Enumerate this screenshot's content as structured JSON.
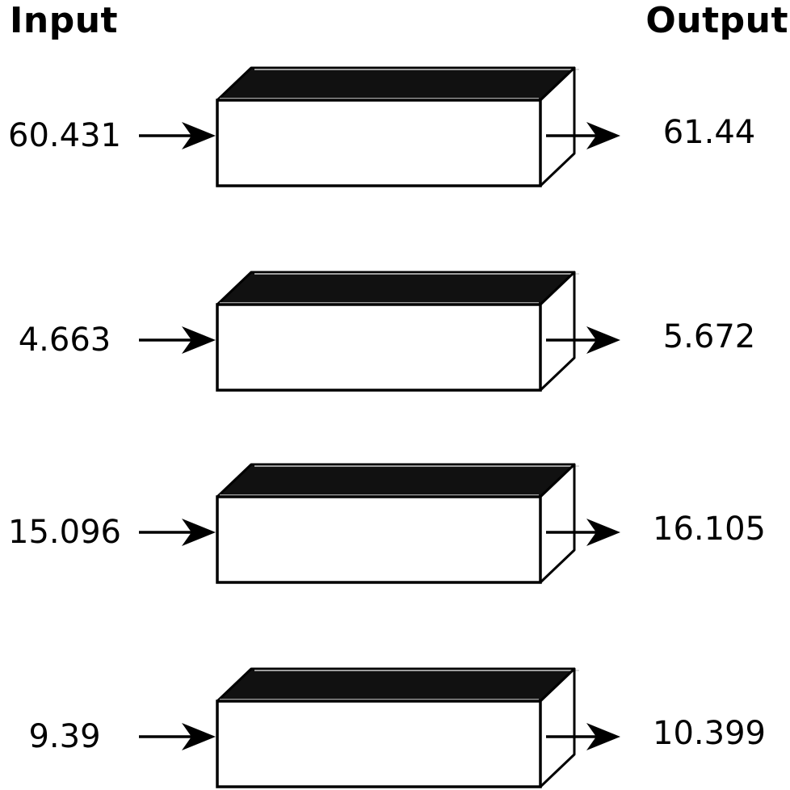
{
  "headers": {
    "input": "Input",
    "output": "Output"
  },
  "rows": [
    {
      "input": "60.431",
      "output": "61.44"
    },
    {
      "input": "4.663",
      "output": "5.672"
    },
    {
      "input": "15.096",
      "output": "16.105"
    },
    {
      "input": "9.39",
      "output": "10.399"
    }
  ],
  "colors": {
    "block_top": "#111111",
    "block_face": "#ffffff",
    "stroke": "#000000"
  }
}
